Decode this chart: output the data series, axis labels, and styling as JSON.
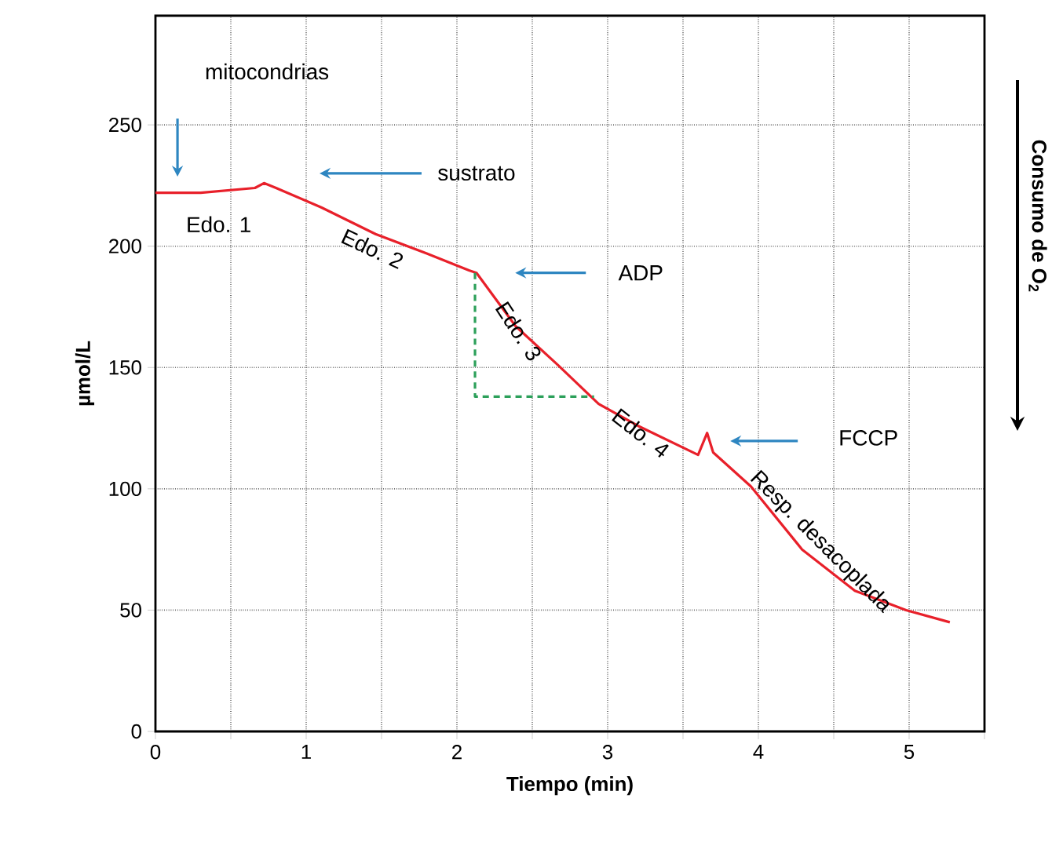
{
  "chart_data": {
    "type": "line",
    "xlabel": "Tiempo (min)",
    "ylabel": "µmol/L",
    "xlim": [
      0,
      5.5
    ],
    "ylim": [
      0,
      295
    ],
    "xticks": [
      0,
      {
        "value": 0.5,
        "label": null
      },
      1,
      {
        "value": 1.5,
        "label": null
      },
      2,
      {
        "value": 2.5,
        "label": null
      },
      3,
      {
        "value": 3.5,
        "label": null
      },
      4,
      {
        "value": 4.5,
        "label": null
      },
      5,
      {
        "value": 5.5,
        "label": null
      }
    ],
    "yticks": [
      0,
      50,
      100,
      150,
      200,
      250
    ],
    "grid": true,
    "line_style": "solid",
    "series": [
      {
        "color": "#e8202a",
        "x": [
          0,
          0.3,
          0.66,
          0.72,
          0.8,
          1.1,
          1.46,
          1.8,
          2.08,
          2.13,
          2.39,
          2.67,
          2.94,
          3.2,
          3.6,
          3.66,
          3.7,
          3.95,
          4.29,
          4.64,
          4.98,
          5.27
        ],
        "values": [
          222,
          222,
          224,
          226,
          224,
          216,
          205,
          197,
          190,
          189,
          167,
          151,
          135,
          126,
          114,
          123,
          115,
          101,
          75,
          58,
          50,
          45
        ]
      },
      {
        "color": "#2ca05a",
        "line_style": "dashed",
        "x": [
          2.12,
          2.12,
          2.91
        ],
        "values": [
          189,
          138,
          138
        ]
      }
    ],
    "annotations": [
      "mitocondrias",
      "sustrato",
      "Edo. 1",
      "Edo. 2",
      "ADP",
      "Edo. 3",
      "Edo. 4",
      "FCCP",
      "Resp. desacoplada",
      "Consumo de O$_{2}$"
    ]
  }
}
